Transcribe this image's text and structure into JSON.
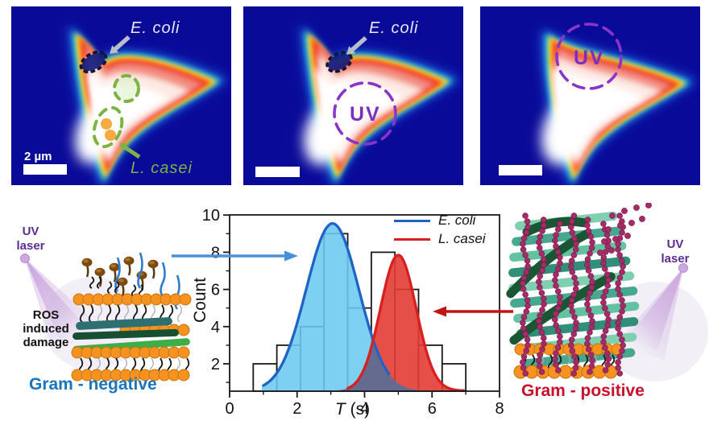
{
  "colors": {
    "panel_background": "#0a0a99",
    "uv_purple": "#7b2fbe",
    "uv_circle": "#8a35c8",
    "ecoli_text": "#e9e9f2",
    "ecoli_outline": "#15152e",
    "lcasei_green": "#7cb342",
    "arrow_gray": "#b9bec8",
    "gram_negative_blue": "#1b75bc",
    "gram_positive_red": "#c8102e",
    "arrow_blue": "#4a90d9",
    "arrow_red": "#c11414",
    "uv_laser_text": "#5b2d90",
    "ros_text": "#111111"
  },
  "microscopy": {
    "panel1": {
      "ecoli_label": "E. coli",
      "lcasei_label": "L. casei",
      "scale_label": "2 µm"
    },
    "panel2": {
      "ecoli_label": "E. coli",
      "uv_label": "UV"
    },
    "panel3": {
      "uv_label": "UV"
    }
  },
  "gram_negative": {
    "uv_word": "UV",
    "laser_word": "laser",
    "ros_line1": "ROS",
    "ros_line2": "induced",
    "ros_line3": "damage",
    "title": "Gram - negative"
  },
  "gram_positive": {
    "uv_word": "UV",
    "laser_word": "laser",
    "title": "Gram - positive"
  },
  "chart_data": {
    "type": "histogram",
    "title": "",
    "xlabel": "T (s)",
    "xlabel_var": "T",
    "xlabel_units": "(s)",
    "ylabel": "Count",
    "xlim": [
      0,
      8
    ],
    "ylim": [
      0.5,
      10.2
    ],
    "xticks": [
      0,
      2,
      4,
      6,
      8
    ],
    "xminor": [
      1,
      3,
      5,
      7
    ],
    "yticks": [
      2,
      4,
      6,
      8,
      10
    ],
    "yminor": [
      1,
      3,
      5,
      7,
      9
    ],
    "grid": false,
    "legend_position": "top-right",
    "bin_edges": [
      0.7,
      1.4,
      2.1,
      2.8,
      3.5,
      4.2,
      4.9,
      5.6,
      6.3,
      7.0
    ],
    "counts": [
      2,
      3,
      4,
      9,
      5,
      8,
      6,
      3,
      2
    ],
    "fits": [
      {
        "name": "E. coli",
        "mu": 3.05,
        "sigma": 0.78,
        "amplitude": 9.0,
        "baseline": 0.55,
        "line_color": "#1f63c4",
        "fill_color": "#6cc9f0",
        "stroke_domain": [
          1.0,
          4.75
        ]
      },
      {
        "name": "L. casei",
        "mu": 5.0,
        "sigma": 0.53,
        "amplitude": 7.3,
        "baseline": 0.55,
        "line_color": "#da1f1f",
        "fill_color": "#e23c33",
        "stroke_domain": [
          3.5,
          6.95
        ]
      }
    ],
    "overlap_fill": "#5f6d94"
  }
}
